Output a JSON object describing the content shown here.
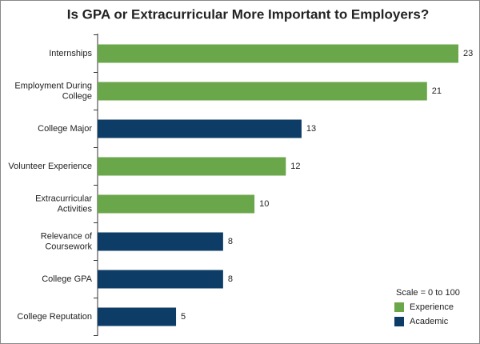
{
  "chart_data": {
    "type": "bar",
    "orientation": "horizontal",
    "title": "Is GPA or Extracurricular More Important to Employers?",
    "categories": [
      "Internships",
      "Employment During College",
      "College Major",
      "Volunteer Experience",
      "Extracurricular Activities",
      "Relevance of Coursework",
      "College GPA",
      "College Reputation"
    ],
    "series": [
      {
        "name": "Experience",
        "color": "#6aa64a",
        "values": [
          23,
          21,
          null,
          12,
          10,
          null,
          null,
          null
        ]
      },
      {
        "name": "Academic",
        "color": "#0d3c66",
        "values": [
          null,
          null,
          13,
          null,
          null,
          8,
          8,
          5
        ]
      }
    ],
    "legend_title": "Scale = 0 to 100",
    "legend_position": "lower right"
  }
}
